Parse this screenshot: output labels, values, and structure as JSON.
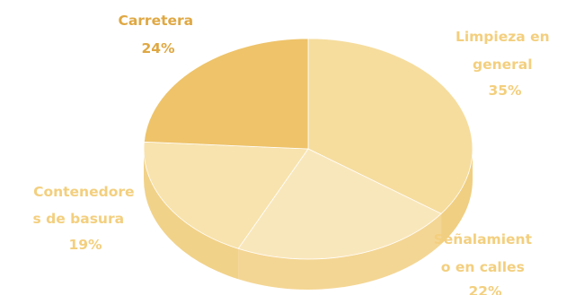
{
  "chart_data": {
    "type": "pie",
    "style": "3d",
    "title": "",
    "slices": [
      {
        "label_lines": [
          "Limpieza en",
          "general"
        ],
        "pct_label": "35%",
        "value": 35,
        "color": "#f6dd9e",
        "side_color": "#f0cf82"
      },
      {
        "label_lines": [
          "Señalamient",
          "o en calles"
        ],
        "pct_label": "22%",
        "value": 22,
        "color": "#f9e7bc",
        "side_color": "#f4d694"
      },
      {
        "label_lines": [
          "Contenedore",
          "s de basura"
        ],
        "pct_label": "19%",
        "value": 19,
        "color": "#f8e3ae",
        "side_color": "#f1d289"
      },
      {
        "label_lines": [
          "Carretera"
        ],
        "pct_label": "24%",
        "value": 24,
        "color": "#eec36a",
        "side_color": "#e3b257"
      }
    ]
  }
}
